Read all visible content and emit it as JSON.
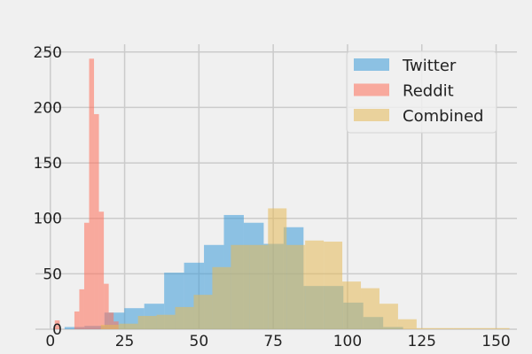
{
  "chart_data": {
    "type": "histogram",
    "title": "",
    "xlabel": "",
    "ylabel": "",
    "xlim": [
      -5,
      157
    ],
    "ylim": [
      0,
      265
    ],
    "x_ticks": [
      0,
      25,
      50,
      75,
      100,
      125,
      150
    ],
    "y_ticks": [
      0,
      50,
      100,
      150,
      200,
      250
    ],
    "grid": true,
    "legend_position": "top-right",
    "bar_opacity": 0.55,
    "series": [
      {
        "name": "Twitter",
        "color": "#3a9ad9",
        "bin_width": 6.7,
        "bins": [
          {
            "x0": 4.8,
            "count": 2
          },
          {
            "x0": 11.5,
            "count": 3
          },
          {
            "x0": 18.2,
            "count": 15
          },
          {
            "x0": 24.9,
            "count": 19
          },
          {
            "x0": 31.6,
            "count": 23
          },
          {
            "x0": 38.3,
            "count": 51
          },
          {
            "x0": 45.0,
            "count": 60
          },
          {
            "x0": 51.7,
            "count": 76
          },
          {
            "x0": 58.4,
            "count": 103
          },
          {
            "x0": 65.1,
            "count": 96
          },
          {
            "x0": 71.8,
            "count": 77
          },
          {
            "x0": 78.5,
            "count": 92
          },
          {
            "x0": 85.2,
            "count": 39
          },
          {
            "x0": 91.9,
            "count": 39
          },
          {
            "x0": 98.6,
            "count": 24
          },
          {
            "x0": 105.3,
            "count": 11
          },
          {
            "x0": 112.0,
            "count": 2
          }
        ]
      },
      {
        "name": "Reddit",
        "color": "#ff6f59",
        "bin_width": 1.65,
        "bins": [
          {
            "x0": 1.5,
            "count": 8
          },
          {
            "x0": 8.1,
            "count": 16
          },
          {
            "x0": 9.75,
            "count": 36
          },
          {
            "x0": 11.4,
            "count": 96
          },
          {
            "x0": 13.05,
            "count": 244
          },
          {
            "x0": 14.7,
            "count": 194
          },
          {
            "x0": 16.35,
            "count": 106
          },
          {
            "x0": 18.0,
            "count": 41
          },
          {
            "x0": 19.65,
            "count": 15
          },
          {
            "x0": 21.3,
            "count": 7
          }
        ]
      },
      {
        "name": "Combined",
        "color": "#e5b958",
        "bin_width": 6.25,
        "bins": [
          {
            "x0": 17.0,
            "count": 4
          },
          {
            "x0": 23.25,
            "count": 5
          },
          {
            "x0": 29.5,
            "count": 12
          },
          {
            "x0": 35.75,
            "count": 13
          },
          {
            "x0": 42.0,
            "count": 20
          },
          {
            "x0": 48.25,
            "count": 31
          },
          {
            "x0": 54.5,
            "count": 56
          },
          {
            "x0": 60.75,
            "count": 76
          },
          {
            "x0": 67.0,
            "count": 76
          },
          {
            "x0": 73.25,
            "count": 109
          },
          {
            "x0": 79.5,
            "count": 76
          },
          {
            "x0": 85.75,
            "count": 80
          },
          {
            "x0": 92.0,
            "count": 79
          },
          {
            "x0": 98.25,
            "count": 43
          },
          {
            "x0": 104.5,
            "count": 37
          },
          {
            "x0": 110.75,
            "count": 23
          },
          {
            "x0": 117.0,
            "count": 9
          },
          {
            "x0": 123.25,
            "count": 1
          },
          {
            "x0": 129.5,
            "count": 1
          },
          {
            "x0": 135.75,
            "count": 1
          },
          {
            "x0": 142.0,
            "count": 1
          },
          {
            "x0": 148.25,
            "count": 1
          }
        ]
      }
    ]
  }
}
